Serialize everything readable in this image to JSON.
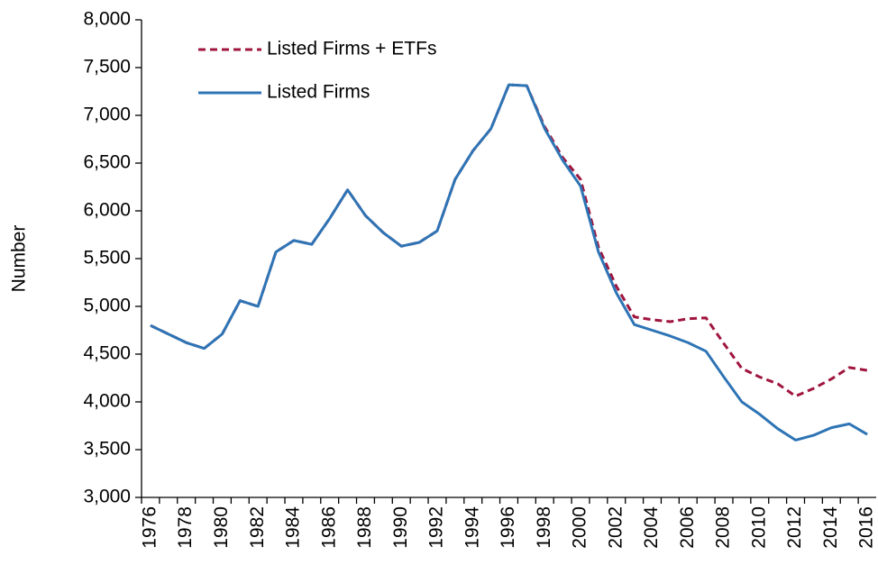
{
  "chart_data": {
    "type": "line",
    "ylabel": "Number",
    "x": [
      1976,
      1977,
      1978,
      1979,
      1980,
      1981,
      1982,
      1983,
      1984,
      1985,
      1986,
      1987,
      1988,
      1989,
      1990,
      1991,
      1992,
      1993,
      1994,
      1995,
      1996,
      1997,
      1998,
      1999,
      2000,
      2001,
      2002,
      2003,
      2004,
      2005,
      2006,
      2007,
      2008,
      2009,
      2010,
      2011,
      2012,
      2013,
      2014,
      2015,
      2016
    ],
    "series": [
      {
        "name": "Listed Firms + ETFs",
        "color": "#a0153e",
        "dash": true,
        "values": [
          4800,
          4710,
          4620,
          4560,
          4710,
          5060,
          5000,
          5570,
          5690,
          5650,
          5920,
          6220,
          5950,
          5770,
          5630,
          5670,
          5790,
          6330,
          6630,
          6860,
          7320,
          7310,
          6880,
          6560,
          6330,
          5620,
          5210,
          4890,
          4860,
          4840,
          4870,
          4880,
          4610,
          4350,
          4260,
          4190,
          4060,
          4140,
          4240,
          4360,
          4330
        ]
      },
      {
        "name": "Listed Firms",
        "color": "#2e74b5",
        "dash": false,
        "values": [
          4800,
          4710,
          4620,
          4560,
          4710,
          5060,
          5000,
          5570,
          5690,
          5650,
          5920,
          6220,
          5950,
          5770,
          5630,
          5670,
          5790,
          6330,
          6630,
          6860,
          7320,
          7310,
          6860,
          6530,
          6260,
          5570,
          5140,
          4810,
          4750,
          4690,
          4620,
          4530,
          4260,
          4000,
          3870,
          3720,
          3600,
          3650,
          3730,
          3770,
          3660
        ]
      }
    ],
    "xlim": [
      1975.5,
      2016.5
    ],
    "xticks": [
      1976,
      1978,
      1980,
      1982,
      1984,
      1986,
      1988,
      1990,
      1992,
      1994,
      1996,
      1998,
      2000,
      2002,
      2004,
      2006,
      2008,
      2010,
      2012,
      2014,
      2016
    ],
    "ylim": [
      3000,
      8000
    ],
    "yticks": [
      {
        "value": 3000,
        "label": "3,000"
      },
      {
        "value": 3500,
        "label": "3,500"
      },
      {
        "value": 4000,
        "label": "4,000"
      },
      {
        "value": 4500,
        "label": "4,500"
      },
      {
        "value": 5000,
        "label": "5,000"
      },
      {
        "value": 5500,
        "label": "5,500"
      },
      {
        "value": 6000,
        "label": "6,000"
      },
      {
        "value": 6500,
        "label": "6,500"
      },
      {
        "value": 7000,
        "label": "7,000"
      },
      {
        "value": 7500,
        "label": "7,500"
      },
      {
        "value": 8000,
        "label": "8,000"
      }
    ],
    "grid": false,
    "legend": "upper left"
  }
}
